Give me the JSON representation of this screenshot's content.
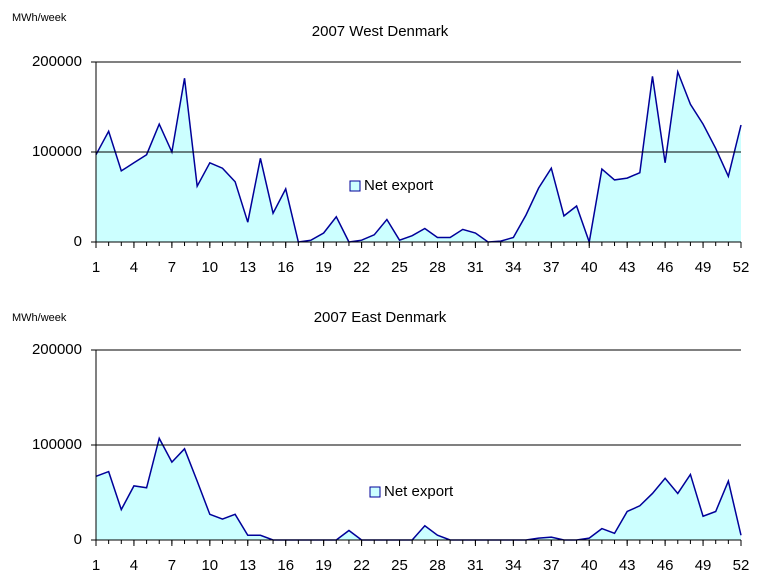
{
  "chart_data": [
    {
      "type": "area",
      "title": "2007 West Denmark",
      "y_label": "MWh/week",
      "x": [
        1,
        2,
        3,
        4,
        5,
        6,
        7,
        8,
        9,
        10,
        11,
        12,
        13,
        14,
        15,
        16,
        17,
        18,
        19,
        20,
        21,
        22,
        23,
        24,
        25,
        26,
        27,
        28,
        29,
        30,
        31,
        32,
        33,
        34,
        35,
        36,
        37,
        38,
        39,
        40,
        41,
        42,
        43,
        44,
        45,
        46,
        47,
        48,
        49,
        50,
        51,
        52
      ],
      "series": [
        {
          "name": "Net export",
          "color": "#000099",
          "fill": "#ccffff",
          "values": [
            97000,
            123000,
            79000,
            88000,
            97000,
            131000,
            100000,
            182000,
            62000,
            88000,
            82000,
            67000,
            22000,
            93000,
            32000,
            59000,
            0,
            2000,
            10000,
            28000,
            0,
            2000,
            8000,
            25000,
            2000,
            7000,
            15000,
            5000,
            5000,
            14000,
            10000,
            0,
            1000,
            5000,
            30000,
            60000,
            82000,
            29000,
            40000,
            0,
            81000,
            69000,
            71000,
            77000,
            184000,
            88000,
            189000,
            153000,
            131000,
            104000,
            73000,
            130000
          ]
        }
      ],
      "xlim": [
        1,
        52
      ],
      "xticks": [
        1,
        4,
        7,
        10,
        13,
        16,
        19,
        22,
        25,
        28,
        31,
        34,
        37,
        40,
        43,
        46,
        49,
        52
      ],
      "ylim": [
        0,
        200000
      ],
      "yticks": [
        0,
        100000,
        200000
      ],
      "grid": true,
      "legend": "center"
    },
    {
      "type": "area",
      "title": "2007 East Denmark",
      "y_label": "MWh/week",
      "x": [
        1,
        2,
        3,
        4,
        5,
        6,
        7,
        8,
        9,
        10,
        11,
        12,
        13,
        14,
        15,
        16,
        17,
        18,
        19,
        20,
        21,
        22,
        23,
        24,
        25,
        26,
        27,
        28,
        29,
        30,
        31,
        32,
        33,
        34,
        35,
        36,
        37,
        38,
        39,
        40,
        41,
        42,
        43,
        44,
        45,
        46,
        47,
        48,
        49,
        50,
        51,
        52
      ],
      "series": [
        {
          "name": "Net export",
          "color": "#000099",
          "fill": "#ccffff",
          "values": [
            67000,
            72000,
            32000,
            57000,
            55000,
            107000,
            82000,
            96000,
            62000,
            27000,
            22000,
            27000,
            5000,
            5000,
            0,
            0,
            0,
            0,
            0,
            0,
            10000,
            0,
            0,
            0,
            0,
            0,
            15000,
            5000,
            0,
            0,
            0,
            0,
            0,
            0,
            0,
            2000,
            3000,
            0,
            0,
            2000,
            12000,
            7000,
            30000,
            36000,
            49000,
            65000,
            49000,
            69000,
            25000,
            30000,
            62000,
            5000
          ]
        }
      ],
      "xlim": [
        1,
        52
      ],
      "xticks": [
        1,
        4,
        7,
        10,
        13,
        16,
        19,
        22,
        25,
        28,
        31,
        34,
        37,
        40,
        43,
        46,
        49,
        52
      ],
      "ylim": [
        0,
        200000
      ],
      "yticks": [
        0,
        100000,
        200000
      ],
      "grid": true,
      "legend": "center"
    }
  ]
}
